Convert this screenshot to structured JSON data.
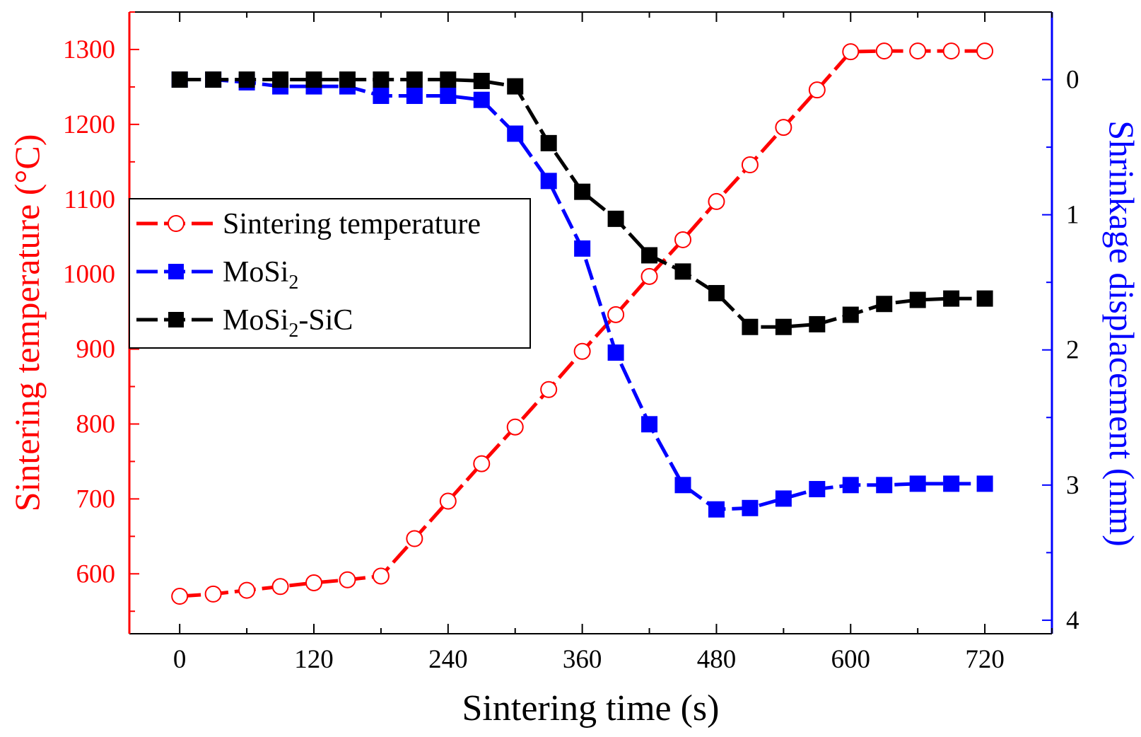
{
  "chart_data": {
    "type": "line",
    "xlabel": "Sintering time (s)",
    "ylabel_left": "Sintering temperature (°C)",
    "ylabel_right": "Shrinkage displacement (mm)",
    "x_ticks": [
      0,
      120,
      240,
      360,
      480,
      600,
      720
    ],
    "x_range": [
      -45,
      780
    ],
    "y_left_ticks": [
      600,
      700,
      800,
      900,
      1000,
      1100,
      1200,
      1300
    ],
    "y_left_range": [
      520,
      1350
    ],
    "y_right_ticks": [
      0,
      1,
      2,
      3,
      4
    ],
    "y_right_range": [
      -0.5,
      4.1
    ],
    "y_right_inverted": true,
    "legend_position": "center-left",
    "x": [
      0,
      30,
      60,
      90,
      120,
      150,
      180,
      210,
      240,
      270,
      300,
      330,
      360,
      390,
      420,
      450,
      480,
      510,
      540,
      570,
      600,
      630,
      660,
      690,
      720
    ],
    "series": [
      {
        "name": "Sintering temperature",
        "axis": "left",
        "color": "#ff0000",
        "marker": "open-circle",
        "values": [
          570,
          573,
          578,
          583,
          588,
          592,
          597,
          647,
          697,
          747,
          796,
          846,
          897,
          946,
          997,
          1046,
          1097,
          1146,
          1196,
          1246,
          1297,
          1298,
          1298,
          1298,
          1298
        ]
      },
      {
        "name": "MoSi",
        "name_subscript": "2",
        "axis": "right",
        "color": "#0000ff",
        "marker": "filled-square",
        "values": [
          0.0,
          0.0,
          0.02,
          0.05,
          0.05,
          0.05,
          0.12,
          0.12,
          0.12,
          0.15,
          0.4,
          0.75,
          1.25,
          2.02,
          2.55,
          3.0,
          3.18,
          3.17,
          3.1,
          3.03,
          3.0,
          3.0,
          2.99,
          2.99,
          2.99
        ]
      },
      {
        "name": "MoSi",
        "name_subscript": "2",
        "name_suffix": "-SiC",
        "axis": "right",
        "color": "#000000",
        "marker": "filled-square",
        "values": [
          0.0,
          0.0,
          0.0,
          0.0,
          0.0,
          0.0,
          0.0,
          0.0,
          0.0,
          0.01,
          0.05,
          0.47,
          0.83,
          1.03,
          1.3,
          1.42,
          1.58,
          1.83,
          1.83,
          1.81,
          1.74,
          1.66,
          1.63,
          1.62,
          1.62
        ]
      }
    ],
    "colors": {
      "left_axis": "#ff0000",
      "right_axis": "#0000ff",
      "frame": "#000000"
    }
  }
}
